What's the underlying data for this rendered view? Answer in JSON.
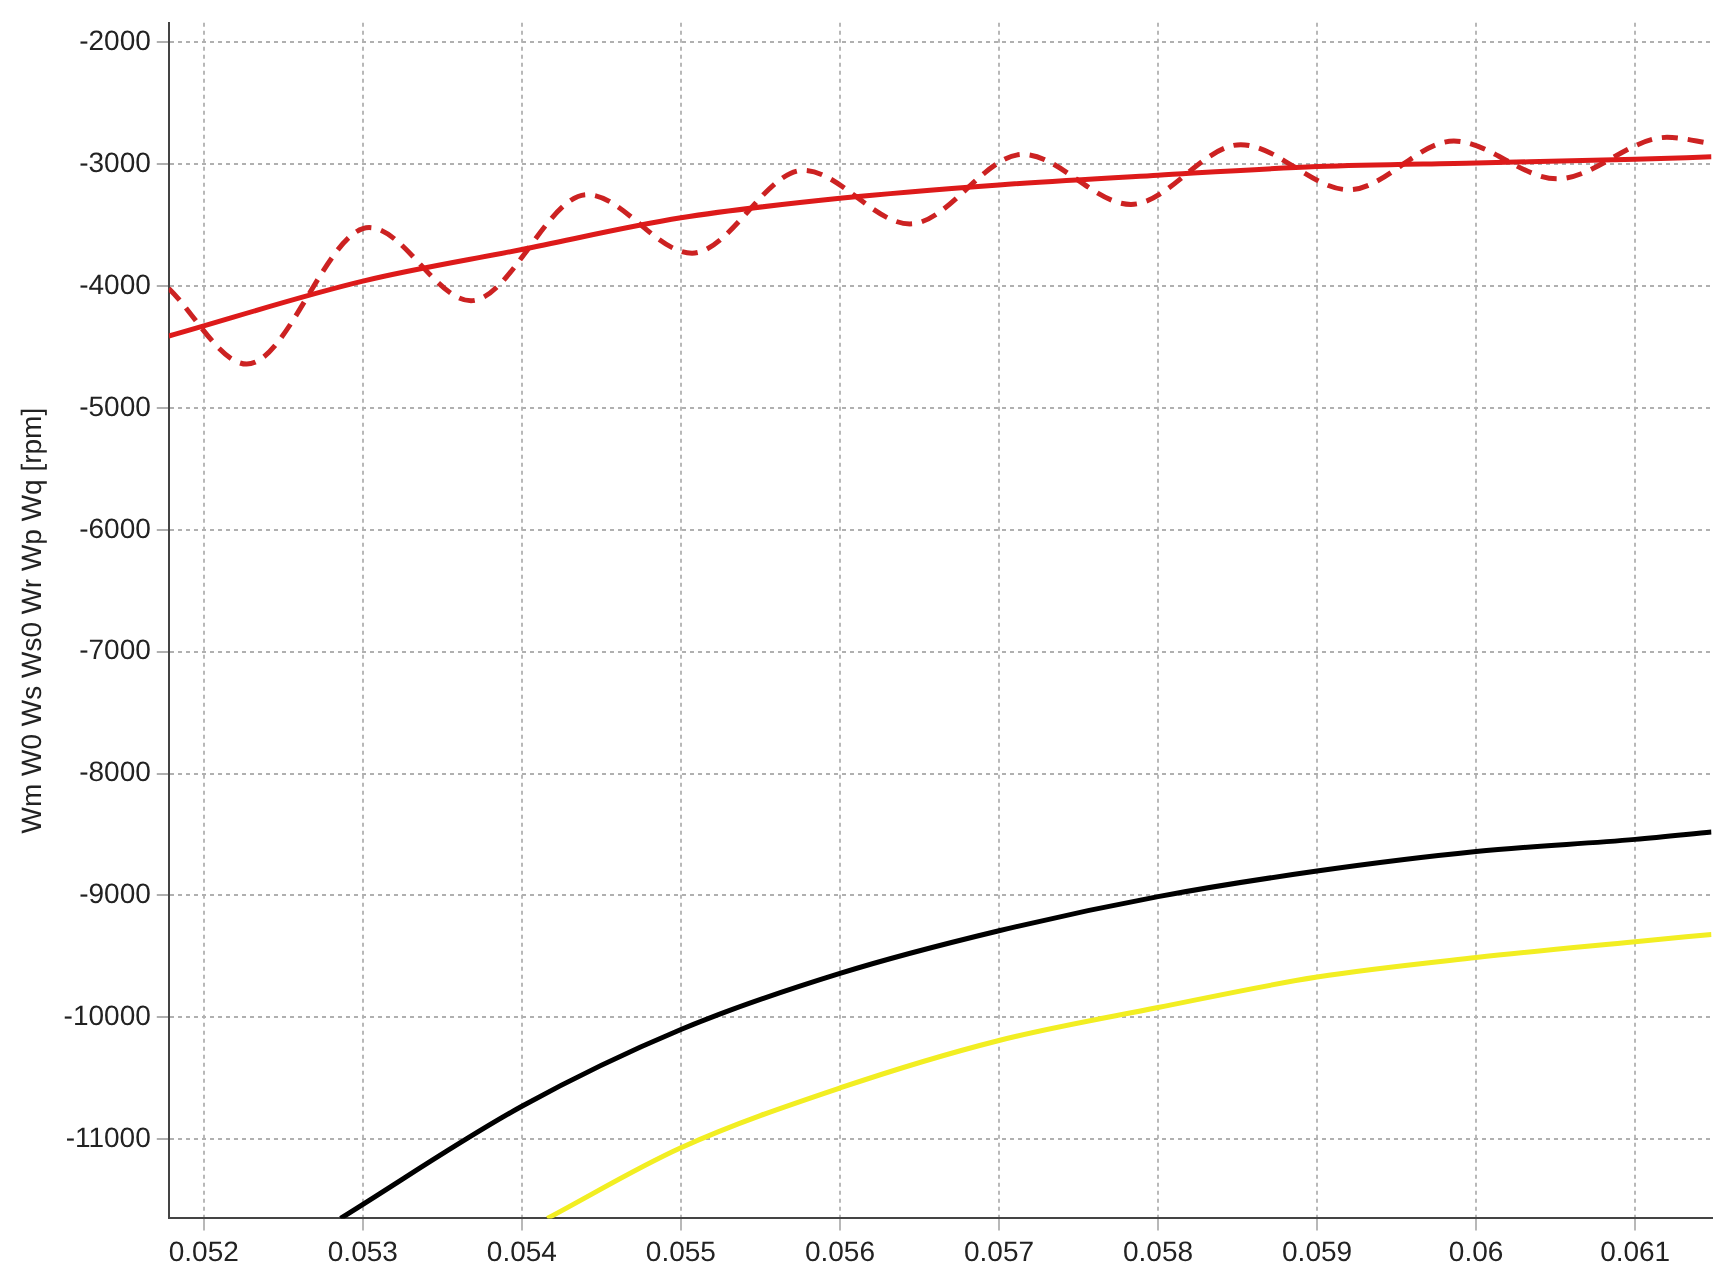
{
  "chart_data": {
    "type": "line",
    "ylabel": "Wm W0 Ws Ws0 Wr Wp Wq [rpm]",
    "xlim": [
      0.05178,
      0.06148
    ],
    "ylim": [
      -11650,
      -1840
    ],
    "xticks": [
      0.052,
      0.053,
      0.054,
      0.055,
      0.056,
      0.057,
      0.058,
      0.059,
      0.06,
      0.061
    ],
    "yticks": [
      -2000,
      -3000,
      -4000,
      -5000,
      -6000,
      -7000,
      -8000,
      -9000,
      -10000,
      -11000
    ],
    "grid": true,
    "marker": "none",
    "legend": false,
    "series": [
      {
        "color": "#dd1a1a",
        "line_style": "solid",
        "x": [
          0.05178,
          0.053,
          0.054,
          0.055,
          0.056,
          0.057,
          0.058,
          0.059,
          0.06,
          0.061,
          0.06148
        ],
        "values": [
          -4410,
          -3960,
          -3700,
          -3440,
          -3280,
          -3170,
          -3090,
          -3020,
          -2990,
          -2960,
          -2940
        ]
      },
      {
        "color": "#cc2222",
        "line_style": "dashed",
        "x": [
          0.05178,
          0.05227,
          0.05304,
          0.05368,
          0.05441,
          0.05507,
          0.05577,
          0.05644,
          0.05715,
          0.05783,
          0.05852,
          0.0592,
          0.05986,
          0.06051,
          0.0612,
          0.06148
        ],
        "values": [
          -4020,
          -4640,
          -3520,
          -4120,
          -3250,
          -3730,
          -3050,
          -3490,
          -2920,
          -3330,
          -2840,
          -3210,
          -2810,
          -3120,
          -2780,
          -2830
        ]
      },
      {
        "color": "#000000",
        "line_style": "solid",
        "x": [
          0.05286,
          0.054,
          0.055,
          0.056,
          0.057,
          0.058,
          0.059,
          0.06,
          0.061,
          0.06148
        ],
        "values": [
          -11650,
          -10730,
          -10100,
          -9640,
          -9290,
          -9010,
          -8800,
          -8640,
          -8540,
          -8480
        ]
      },
      {
        "color": "#f2ee22",
        "line_style": "solid",
        "x": [
          0.05416,
          0.055,
          0.056,
          0.057,
          0.058,
          0.059,
          0.06,
          0.061,
          0.06148
        ],
        "values": [
          -11650,
          -11070,
          -10580,
          -10190,
          -9920,
          -9670,
          -9510,
          -9380,
          -9320
        ]
      }
    ]
  }
}
